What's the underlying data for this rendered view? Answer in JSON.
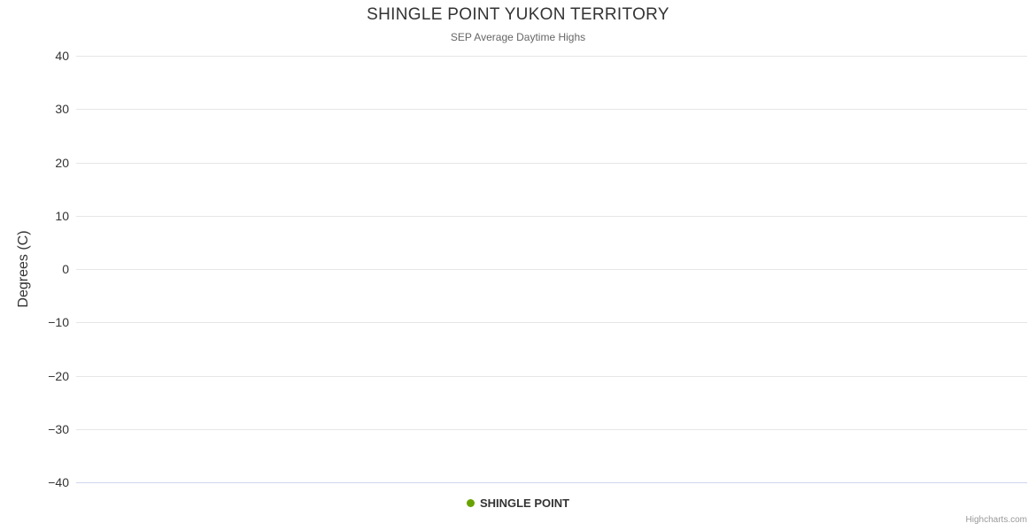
{
  "chart_data": {
    "type": "line",
    "title": "SHINGLE POINT YUKON TERRITORY",
    "subtitle": "SEP Average Daytime Highs",
    "xlabel": "",
    "ylabel": "Degrees (C)",
    "ylim": [
      -40,
      40
    ],
    "ytick_interval": 10,
    "yticks": [
      40,
      30,
      20,
      10,
      0,
      -10,
      -20,
      -30,
      -40
    ],
    "grid": true,
    "legend_position": "bottom-center",
    "series": [
      {
        "name": "SHINGLE POINT",
        "color": "#69a302",
        "values": []
      }
    ]
  },
  "colors": {
    "gridline": "#e6e6e6",
    "x_axis_line": "#ccd6eb",
    "title_text": "#333333",
    "subtitle_text": "#666666",
    "tick_label_text": "#333333",
    "credits_text": "#999999"
  },
  "credits": {
    "label": "Highcharts.com"
  }
}
